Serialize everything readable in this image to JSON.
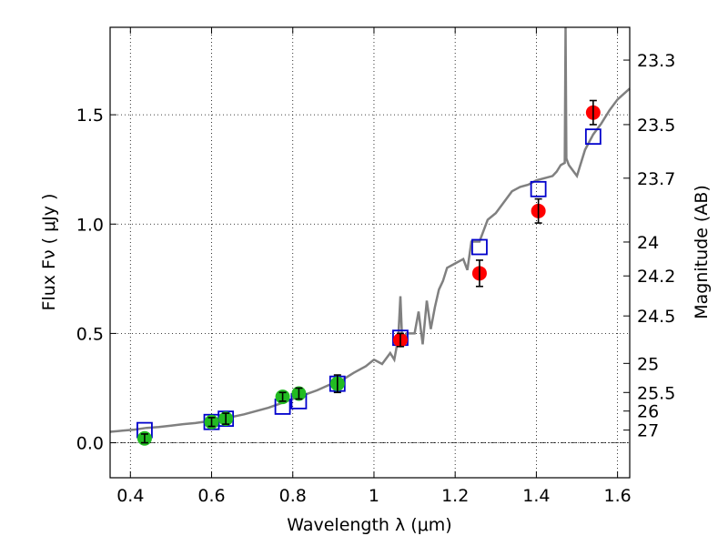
{
  "chart_data": {
    "type": "scatter",
    "xlabel": "Wavelength  λ (μm)",
    "ylabel": "Flux  Fν  ( μJy )",
    "ylabel_right": "Magnitude (AB)",
    "xlim": [
      0.35,
      1.63
    ],
    "ylim": [
      -0.16,
      1.9
    ],
    "grid": true,
    "x_ticks": [
      0.4,
      0.6,
      0.8,
      1.0,
      1.2,
      1.4,
      1.6
    ],
    "x_tick_labels": [
      "0.4",
      "0.6",
      "0.8",
      "1",
      "1.2",
      "1.4",
      "1.6"
    ],
    "y_ticks": [
      0.0,
      0.5,
      1.0,
      1.5
    ],
    "y_tick_labels": [
      "0.0",
      "0.5",
      "1.0",
      "1.5"
    ],
    "right_ticks": [
      {
        "label": "23.3",
        "flux": 1.75
      },
      {
        "label": "23.5",
        "flux": 1.455
      },
      {
        "label": "23.7",
        "flux": 1.21
      },
      {
        "label": "24",
        "flux": 0.918
      },
      {
        "label": "24.2",
        "flux": 0.763
      },
      {
        "label": "24.5",
        "flux": 0.58
      },
      {
        "label": "25",
        "flux": 0.363
      },
      {
        "label": "25.5",
        "flux": 0.23
      },
      {
        "label": "26",
        "flux": 0.145
      },
      {
        "label": "27",
        "flux": 0.058
      }
    ],
    "series": [
      {
        "kind": "model-spectrum",
        "color": "#808080",
        "points": [
          [
            0.35,
            0.05
          ],
          [
            0.38,
            0.055
          ],
          [
            0.41,
            0.06
          ],
          [
            0.44,
            0.068
          ],
          [
            0.47,
            0.072
          ],
          [
            0.5,
            0.078
          ],
          [
            0.53,
            0.085
          ],
          [
            0.56,
            0.09
          ],
          [
            0.59,
            0.098
          ],
          [
            0.62,
            0.108
          ],
          [
            0.65,
            0.118
          ],
          [
            0.68,
            0.13
          ],
          [
            0.71,
            0.145
          ],
          [
            0.74,
            0.16
          ],
          [
            0.77,
            0.18
          ],
          [
            0.8,
            0.2
          ],
          [
            0.83,
            0.22
          ],
          [
            0.86,
            0.24
          ],
          [
            0.89,
            0.265
          ],
          [
            0.92,
            0.285
          ],
          [
            0.95,
            0.32
          ],
          [
            0.98,
            0.35
          ],
          [
            1.0,
            0.38
          ],
          [
            1.02,
            0.36
          ],
          [
            1.04,
            0.41
          ],
          [
            1.05,
            0.38
          ],
          [
            1.06,
            0.48
          ],
          [
            1.065,
            0.67
          ],
          [
            1.07,
            0.44
          ],
          [
            1.08,
            0.5
          ],
          [
            1.1,
            0.5
          ],
          [
            1.11,
            0.6
          ],
          [
            1.12,
            0.45
          ],
          [
            1.13,
            0.65
          ],
          [
            1.14,
            0.52
          ],
          [
            1.15,
            0.62
          ],
          [
            1.16,
            0.7
          ],
          [
            1.17,
            0.74
          ],
          [
            1.18,
            0.8
          ],
          [
            1.2,
            0.82
          ],
          [
            1.22,
            0.84
          ],
          [
            1.23,
            0.79
          ],
          [
            1.24,
            0.92
          ],
          [
            1.26,
            0.92
          ],
          [
            1.28,
            1.02
          ],
          [
            1.3,
            1.05
          ],
          [
            1.32,
            1.1
          ],
          [
            1.34,
            1.15
          ],
          [
            1.36,
            1.17
          ],
          [
            1.38,
            1.18
          ],
          [
            1.4,
            1.2
          ],
          [
            1.42,
            1.21
          ],
          [
            1.44,
            1.22
          ],
          [
            1.45,
            1.24
          ],
          [
            1.46,
            1.27
          ],
          [
            1.47,
            1.28
          ],
          [
            1.472,
            1.9
          ],
          [
            1.474,
            1.3
          ],
          [
            1.48,
            1.27
          ],
          [
            1.5,
            1.22
          ],
          [
            1.52,
            1.34
          ],
          [
            1.54,
            1.41
          ],
          [
            1.56,
            1.46
          ],
          [
            1.58,
            1.52
          ],
          [
            1.6,
            1.57
          ],
          [
            1.63,
            1.62
          ]
        ]
      },
      {
        "kind": "model-photometry",
        "marker": "open-square",
        "color": "#0000cc",
        "points": [
          [
            0.435,
            0.058
          ],
          [
            0.6,
            0.095
          ],
          [
            0.635,
            0.11
          ],
          [
            0.775,
            0.165
          ],
          [
            0.815,
            0.19
          ],
          [
            0.91,
            0.27
          ],
          [
            1.065,
            0.48
          ],
          [
            1.26,
            0.895
          ],
          [
            1.405,
            1.16
          ],
          [
            1.54,
            1.4
          ]
        ]
      },
      {
        "kind": "observed-optical",
        "marker": "filled-circle",
        "color": "#22bb22",
        "points": [
          {
            "x": 0.435,
            "y": 0.02,
            "err": 0.02
          },
          {
            "x": 0.6,
            "y": 0.095,
            "err": 0.02
          },
          {
            "x": 0.635,
            "y": 0.11,
            "err": 0.025
          },
          {
            "x": 0.775,
            "y": 0.21,
            "err": 0.02
          },
          {
            "x": 0.815,
            "y": 0.225,
            "err": 0.025
          },
          {
            "x": 0.91,
            "y": 0.27,
            "err": 0.04
          }
        ]
      },
      {
        "kind": "observed-nir",
        "marker": "filled-circle",
        "color": "#ff0000",
        "points": [
          {
            "x": 1.065,
            "y": 0.47,
            "err": 0.03
          },
          {
            "x": 1.26,
            "y": 0.775,
            "err": 0.06
          },
          {
            "x": 1.405,
            "y": 1.06,
            "err": 0.055
          },
          {
            "x": 1.54,
            "y": 1.51,
            "err": 0.055
          }
        ]
      }
    ]
  }
}
